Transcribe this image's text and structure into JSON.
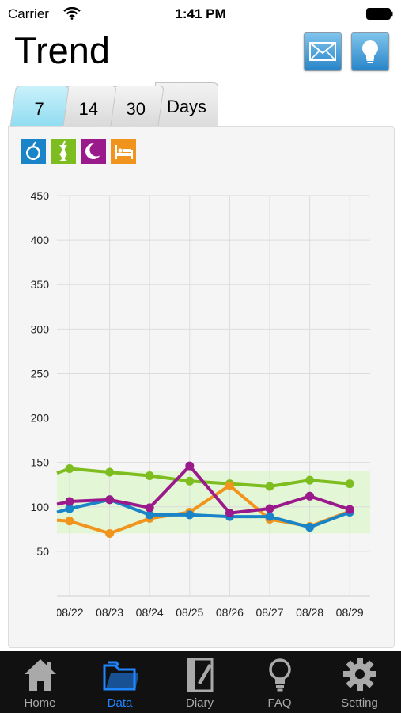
{
  "status_bar": {
    "carrier": "Carrier",
    "time": "1:41 PM"
  },
  "header": {
    "title": "Trend",
    "mail_icon": "mail-icon",
    "idea_icon": "lightbulb-icon"
  },
  "range_tabs": [
    {
      "label": "7",
      "active": true
    },
    {
      "label": "14",
      "active": false
    },
    {
      "label": "30",
      "active": false
    }
  ],
  "range_unit": "Days",
  "legend": [
    {
      "icon": "apple-icon",
      "color": "#1a84c8"
    },
    {
      "icon": "apple-core-icon",
      "color": "#7dbd1f"
    },
    {
      "icon": "moon-icon",
      "color": "#9a1a8c"
    },
    {
      "icon": "bed-icon",
      "color": "#f0941e"
    }
  ],
  "chart_data": {
    "type": "line",
    "categories": [
      "08/22",
      "08/23",
      "08/24",
      "08/25",
      "08/26",
      "08/27",
      "08/28",
      "08/29"
    ],
    "categories_visible_partial_first": "08/22",
    "yticks": [
      50,
      100,
      150,
      200,
      250,
      300,
      350,
      400,
      450
    ],
    "ylim": [
      0,
      450
    ],
    "grid": true,
    "target_band": [
      70,
      140
    ],
    "series": [
      {
        "color": "#7dbd1f",
        "start": 138,
        "values": [
          143,
          139,
          135,
          129,
          126,
          123,
          130,
          126
        ]
      },
      {
        "color": "#f0941e",
        "start": 85,
        "values": [
          84,
          70,
          87,
          94,
          124,
          86,
          78,
          95
        ]
      },
      {
        "color": "#1a84c8",
        "start": 94,
        "values": [
          98,
          108,
          91,
          91,
          89,
          89,
          77,
          94
        ]
      },
      {
        "color": "#9a1a8c",
        "start": 103,
        "values": [
          106,
          108,
          99,
          146,
          93,
          98,
          112,
          97
        ]
      }
    ]
  },
  "tabbar": [
    {
      "label": "Home",
      "icon": "home-icon",
      "active": false
    },
    {
      "label": "Data",
      "icon": "folder-icon",
      "active": true
    },
    {
      "label": "Diary",
      "icon": "diary-icon",
      "active": false
    },
    {
      "label": "FAQ",
      "icon": "lightbulb-icon",
      "active": false
    },
    {
      "label": "Setting",
      "icon": "gear-icon",
      "active": false
    }
  ]
}
